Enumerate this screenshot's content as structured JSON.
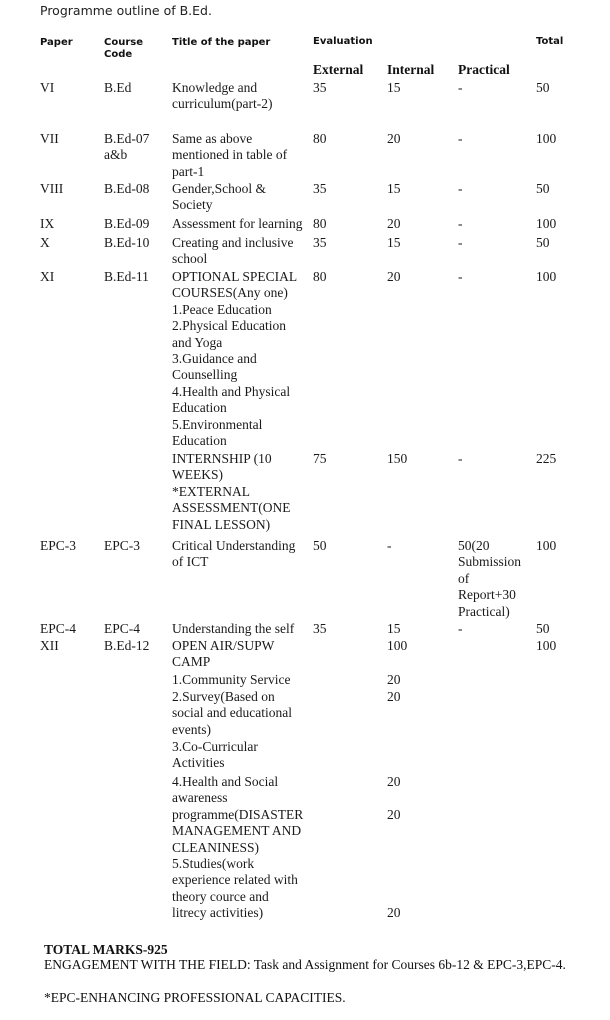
{
  "page_title": "Programme outline of B.Ed.",
  "headers": {
    "paper": "Paper",
    "course_code": "Course\nCode",
    "title": "Title of the paper",
    "evaluation": "Evaluation",
    "total": "Total",
    "external": "External",
    "internal": "Internal",
    "practical": "Practical"
  },
  "rows": [
    {
      "paper": "VI",
      "code": "B.Ed",
      "title": "Knowledge and\ncurriculum(part-2)",
      "external": "35",
      "internal": "15",
      "practical": "-",
      "total": "50"
    },
    {
      "paper": "VII",
      "code": "B.Ed-07\na&b",
      "title": "Same as above\nmentioned in table of\npart-1",
      "external": "80",
      "internal": "20",
      "practical": "-",
      "total": "100"
    },
    {
      "paper": "VIII",
      "code": "B.Ed-08",
      "title": "Gender,School &\nSociety",
      "external": "35",
      "internal": "15",
      "practical": "-",
      "total": "50"
    },
    {
      "paper": "IX",
      "code": "B.Ed-09",
      "title": "Assessment for learning",
      "external": "80",
      "internal": "20",
      "practical": "-",
      "total": "100"
    },
    {
      "paper": "X",
      "code": "B.Ed-10",
      "title": "Creating and inclusive\nschool",
      "external": "35",
      "internal": "15",
      "practical": "-",
      "total": "50"
    },
    {
      "paper": "XI",
      "code": "B.Ed-11",
      "title": "OPTIONAL SPECIAL\nCOURSES(Any one)\n1.Peace Education\n2.Physical Education\nand Yoga\n3.Guidance and\nCounselling\n4.Health and Physical\nEducation\n5.Environmental\nEducation",
      "external": "80",
      "internal": "20",
      "practical": "-",
      "total": "100"
    },
    {
      "paper": "",
      "code": "",
      "title": "INTERNSHIP (10\nWEEKS)\n*EXTERNAL\nASSESSMENT(ONE\nFINAL LESSON)",
      "external": "75",
      "internal": "150",
      "practical": "-",
      "total": "225"
    },
    {
      "paper": "EPC-3",
      "code": "EPC-3",
      "title": "Critical Understanding\nof ICT",
      "external": "50",
      "internal": "-",
      "practical": "50(20\nSubmission\nof\nReport+30\nPractical)",
      "total": "100"
    },
    {
      "paper": "EPC-4",
      "code": "EPC-4",
      "title": "Understanding the self",
      "external": "35",
      "internal": "15",
      "practical": "-",
      "total": "50"
    },
    {
      "paper": "XII",
      "code": "B.Ed-12",
      "title": "OPEN AIR/SUPW\nCAMP",
      "external": "",
      "internal": "100",
      "practical": "",
      "total": "100"
    },
    {
      "paper": "",
      "code": "",
      "title": "1.Community Service",
      "external": "",
      "internal": "20",
      "practical": "",
      "total": ""
    },
    {
      "paper": "",
      "code": "",
      "title": "2.Survey(Based on\nsocial and educational\nevents)",
      "external": "",
      "internal": "20",
      "practical": "",
      "total": ""
    },
    {
      "paper": "",
      "code": "",
      "title": "3.Co-Curricular\nActivities",
      "external": "",
      "internal": "",
      "practical": "",
      "total": ""
    },
    {
      "paper": "",
      "code": "",
      "title": "4.Health and Social\nawareness\nprogramme(DISASTER\nMANAGEMENT AND\nCLEANINESS)",
      "external": "",
      "internal": "20\n\n20",
      "practical": "",
      "total": ""
    },
    {
      "paper": "",
      "code": "",
      "title": "5.Studies(work\nexperience related with\ntheory cource and\nlitrecy activities)",
      "external": "",
      "internal": "\n\n\n20",
      "practical": "",
      "total": ""
    }
  ],
  "footer": {
    "total_marks": "TOTAL MARKS-925",
    "engagement": "ENGAGEMENT WITH THE FIELD: Task and Assignment for Courses 6b-12 & EPC-3,EPC-4.",
    "epc_note": "*EPC-ENHANCING PROFESSIONAL CAPACITIES."
  }
}
